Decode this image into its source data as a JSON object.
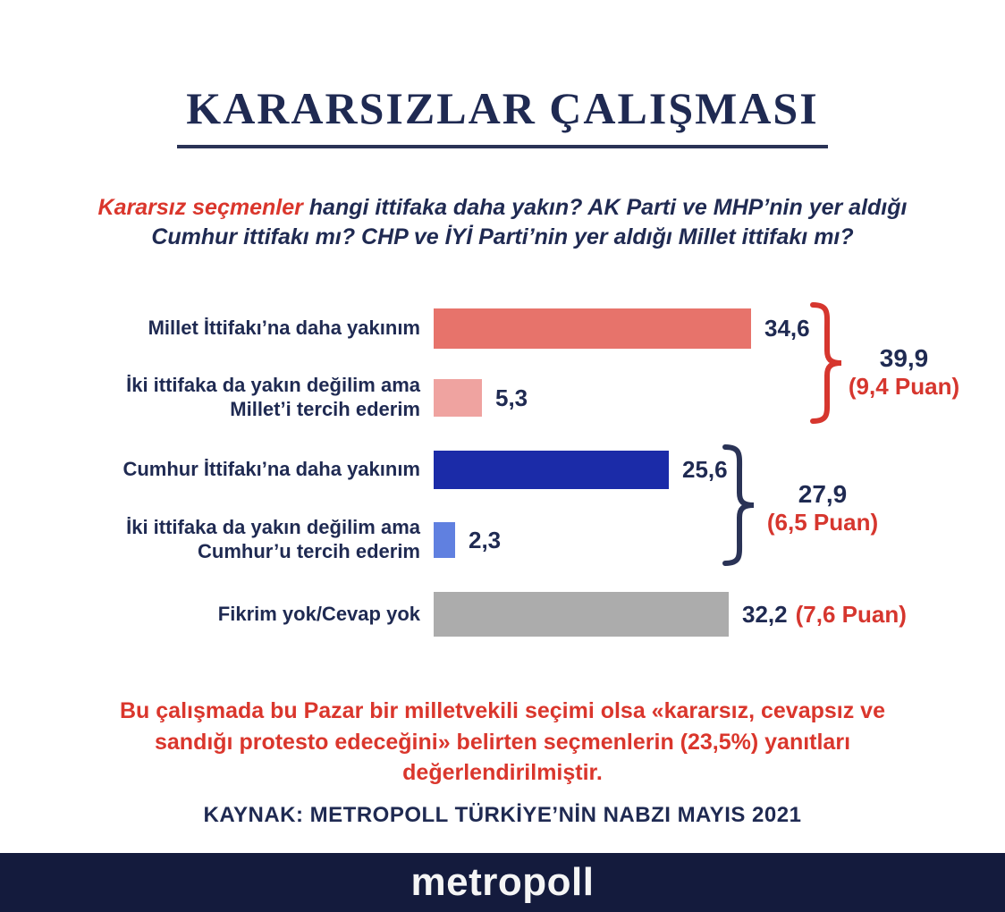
{
  "page": {
    "title": "KARARSIZLAR ÇALIŞMASI",
    "question": {
      "highlight": "Kararsız seçmenler",
      "rest": " hangi ittifaka daha yakın? AK Parti ve MHP’nin yer aldığı Cumhur ittifakı mı? CHP ve İYİ Parti’nin yer aldığı Millet ittifakı mı?"
    },
    "note": "Bu çalışmada bu Pazar bir milletvekili seçimi olsa «kararsız, cevapsız ve sandığı protesto edeceğini» belirten seçmenlerin (23,5%) yanıtları değerlendirilmiştir.",
    "source": "KAYNAK: METROPOLL TÜRKİYE’NİN NABZI MAYIS 2021",
    "footer_logo": "metropoll"
  },
  "colors": {
    "navy_text": "#1f2a52",
    "red_accent": "#d6362e",
    "footer_bar": "#141b3d"
  },
  "chart_data": {
    "type": "bar",
    "orientation": "horizontal",
    "title": "KARARSIZLAR ÇALIŞMASI",
    "xlim": [
      0,
      34.6
    ],
    "grid": false,
    "legend": "none",
    "value_format": "comma-decimal",
    "categories": [
      "Millet İttifakı’na daha yakınım",
      "İki ittifaka da yakın değilim ama Millet’i tercih ederim",
      "Cumhur İttifakı’na daha yakınım",
      "İki ittifaka da yakın değilim ama Cumhur’u tercih ederim",
      "Fikrim yok/Cevap yok"
    ],
    "values": [
      34.6,
      5.3,
      25.6,
      2.3,
      32.2
    ],
    "rows": [
      {
        "label_lines": [
          "Millet İttifakı’na daha yakınım"
        ],
        "value": 34.6,
        "value_label": "34,6",
        "value_suffix": "",
        "color": "#e7736b"
      },
      {
        "label_lines": [
          "İki ittifaka da yakın değilim ama",
          "Millet’i tercih ederim"
        ],
        "value": 5.3,
        "value_label": "5,3",
        "value_suffix": "",
        "color": "#efa3a0"
      },
      {
        "label_lines": [
          "Cumhur İttifakı’na daha yakınım"
        ],
        "value": 25.6,
        "value_label": "25,6",
        "value_suffix": "",
        "color": "#1b2ba8"
      },
      {
        "label_lines": [
          "İki ittifaka da yakın değilim ama",
          "Cumhur’u tercih ederim"
        ],
        "value": 2.3,
        "value_label": "2,3",
        "value_suffix": "",
        "color": "#6080e0"
      },
      {
        "label_lines": [
          "Fikrim yok/Cevap yok"
        ],
        "value": 32.2,
        "value_label": "32,2",
        "value_suffix": "(7,6 Puan)",
        "color": "#acacac"
      }
    ],
    "groups": [
      {
        "rows": [
          0,
          1
        ],
        "total": 39.9,
        "total_label": "39,9",
        "puan_label": "(9,4 Puan)",
        "bracket_color": "#d6362e"
      },
      {
        "rows": [
          2,
          3
        ],
        "total": 27.9,
        "total_label": "27,9",
        "puan_label": "(6,5 Puan)",
        "bracket_color": "#2a3356"
      }
    ]
  }
}
